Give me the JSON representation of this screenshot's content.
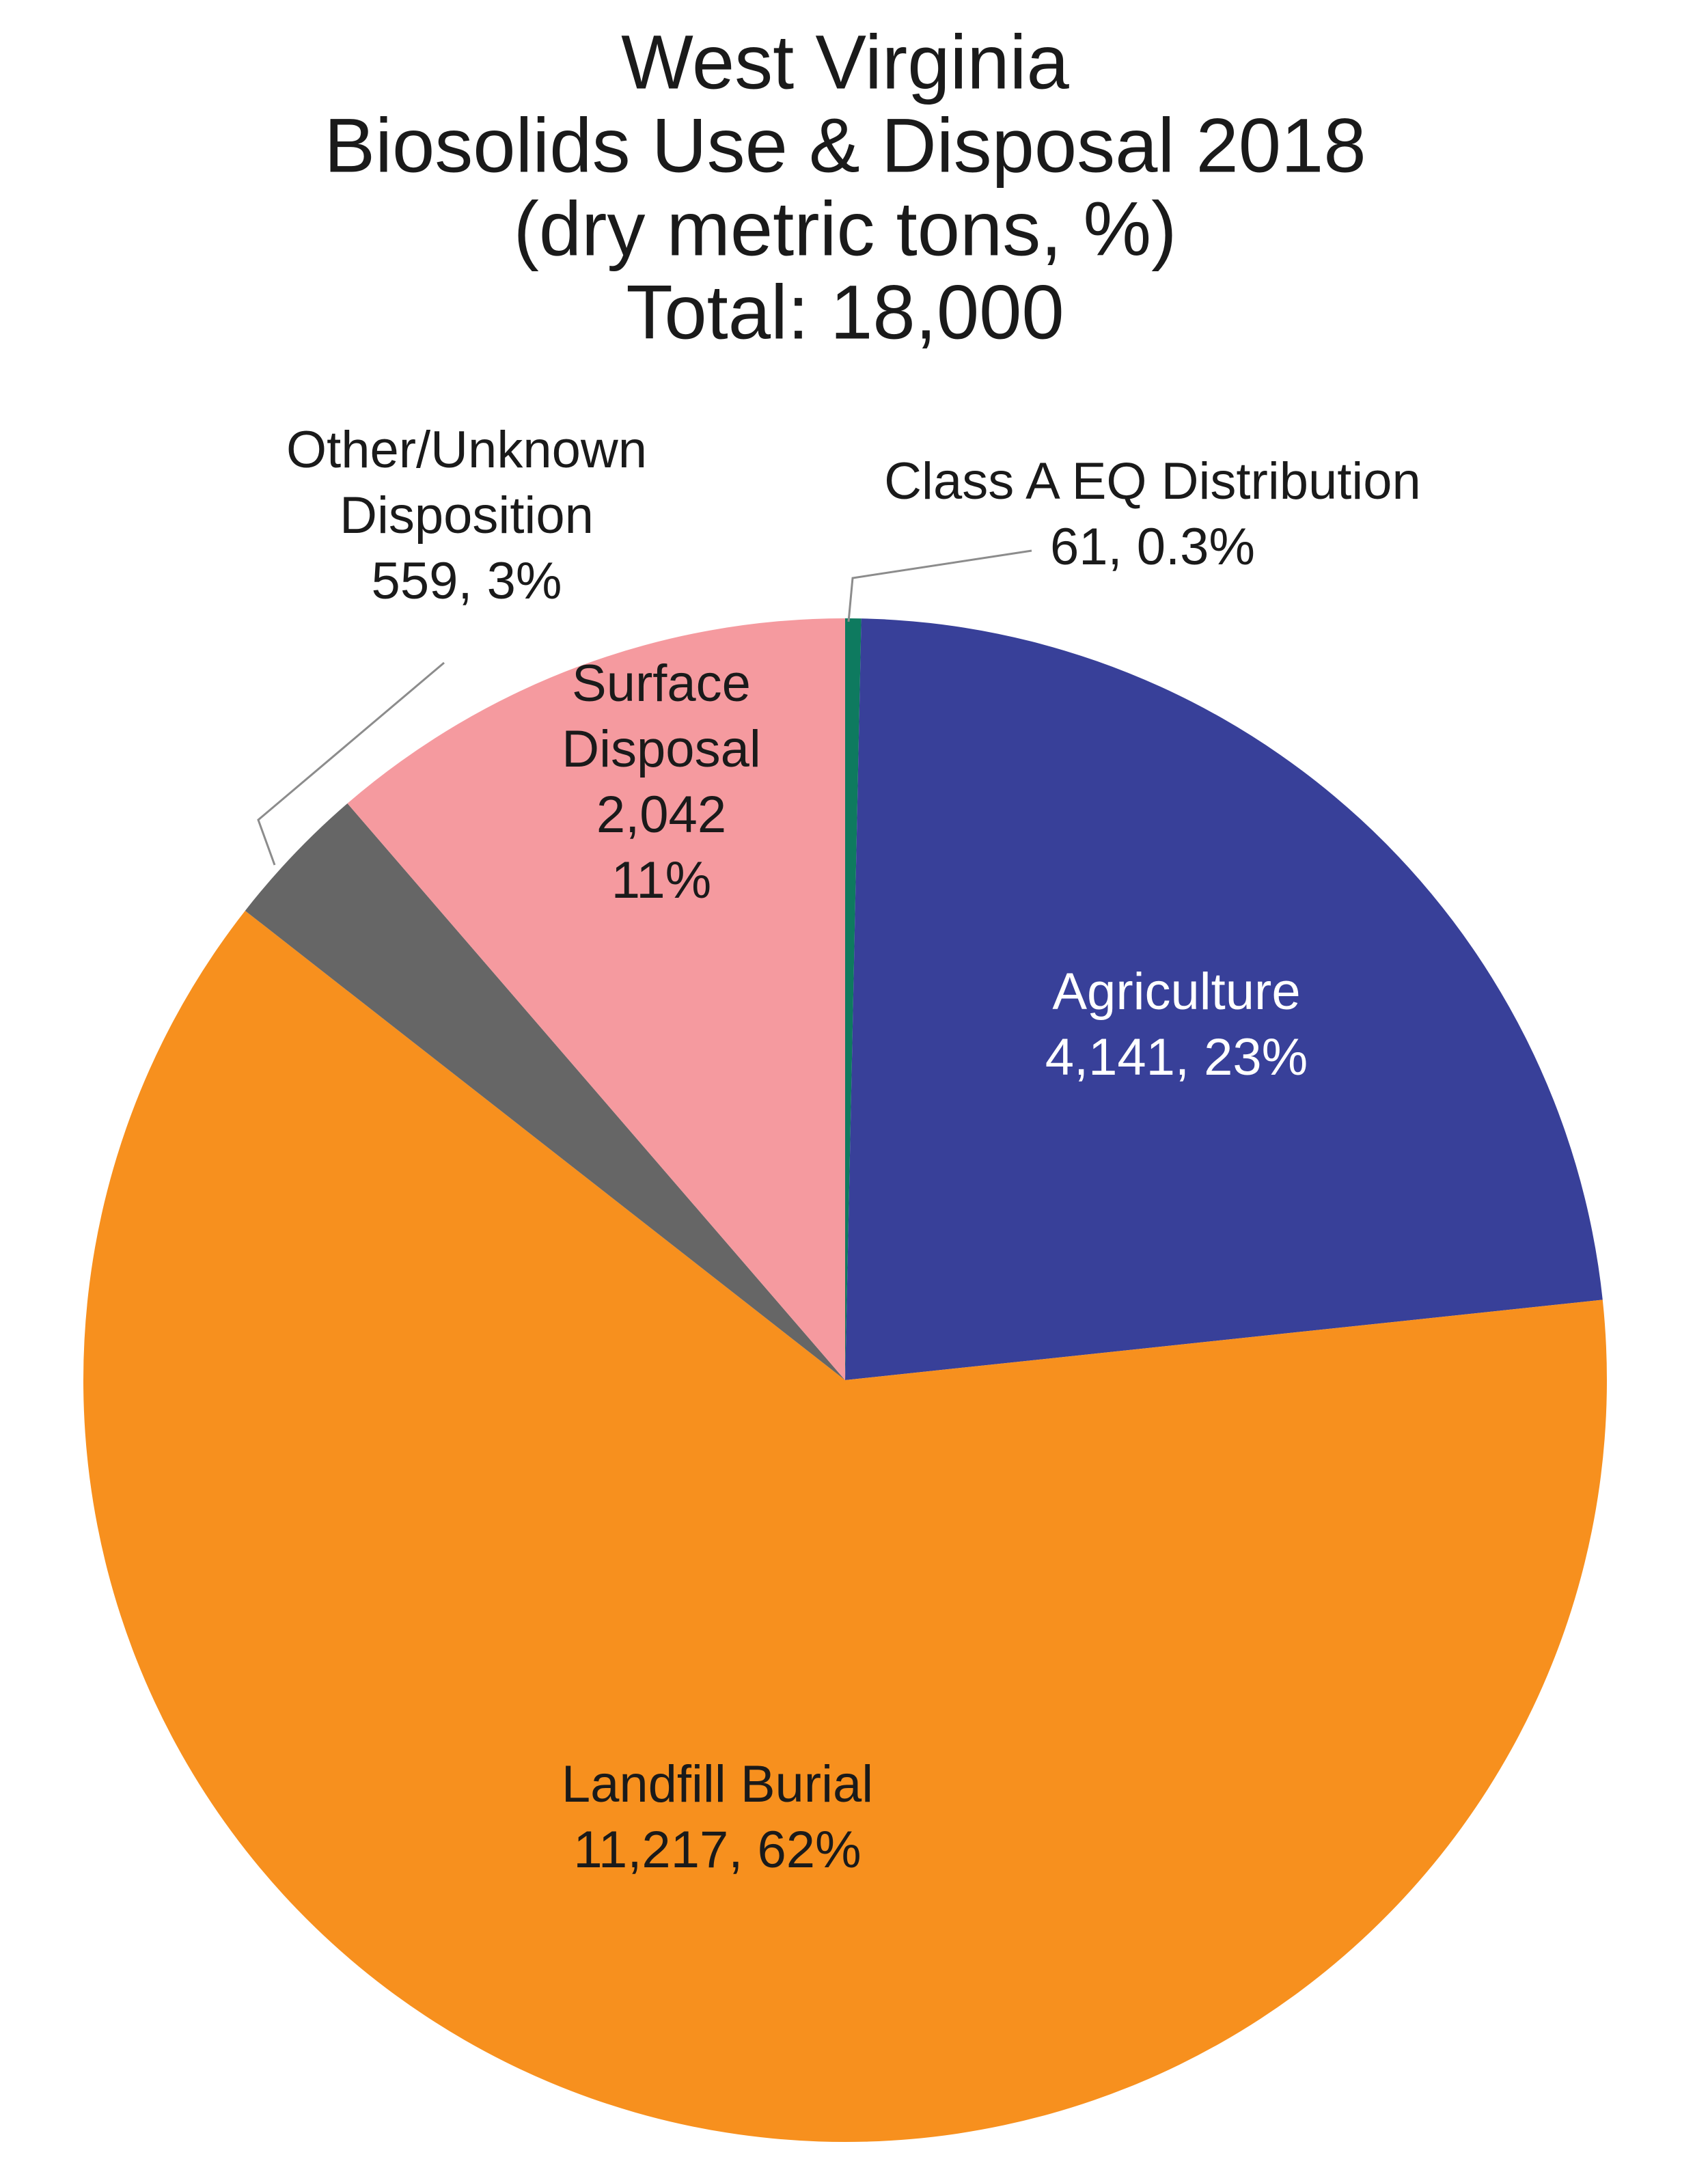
{
  "chart_data": {
    "type": "pie",
    "title": [
      "West Virginia",
      "Biosolids Use & Disposal 2018",
      "(dry metric tons, %)",
      "Total: 18,000"
    ],
    "total": 18000,
    "units": "dry metric tons",
    "slices": [
      {
        "name": "Class A EQ Distribution",
        "value": 61,
        "percent": 0.3,
        "color": "#0e7a5f",
        "label_lines": [
          "Class A EQ Distribution",
          "61, 0.3%"
        ]
      },
      {
        "name": "Agriculture",
        "value": 4141,
        "percent": 23,
        "color": "#384099",
        "label_lines": [
          "Agriculture",
          "4,141, 23%"
        ]
      },
      {
        "name": "Landfill Burial",
        "value": 11217,
        "percent": 62,
        "color": "#f7901e",
        "label_lines": [
          "Landfill Burial",
          "11,217, 62%"
        ]
      },
      {
        "name": "Other/Unknown Disposition",
        "value": 559,
        "percent": 3,
        "color": "#666666",
        "label_lines": [
          "Other/Unknown",
          "Disposition",
          "559, 3%"
        ]
      },
      {
        "name": "Surface Disposal",
        "value": 2042,
        "percent": 11,
        "color": "#f59a9f",
        "label_lines": [
          "Surface",
          "Disposal",
          "2,042",
          "11%"
        ]
      }
    ]
  }
}
